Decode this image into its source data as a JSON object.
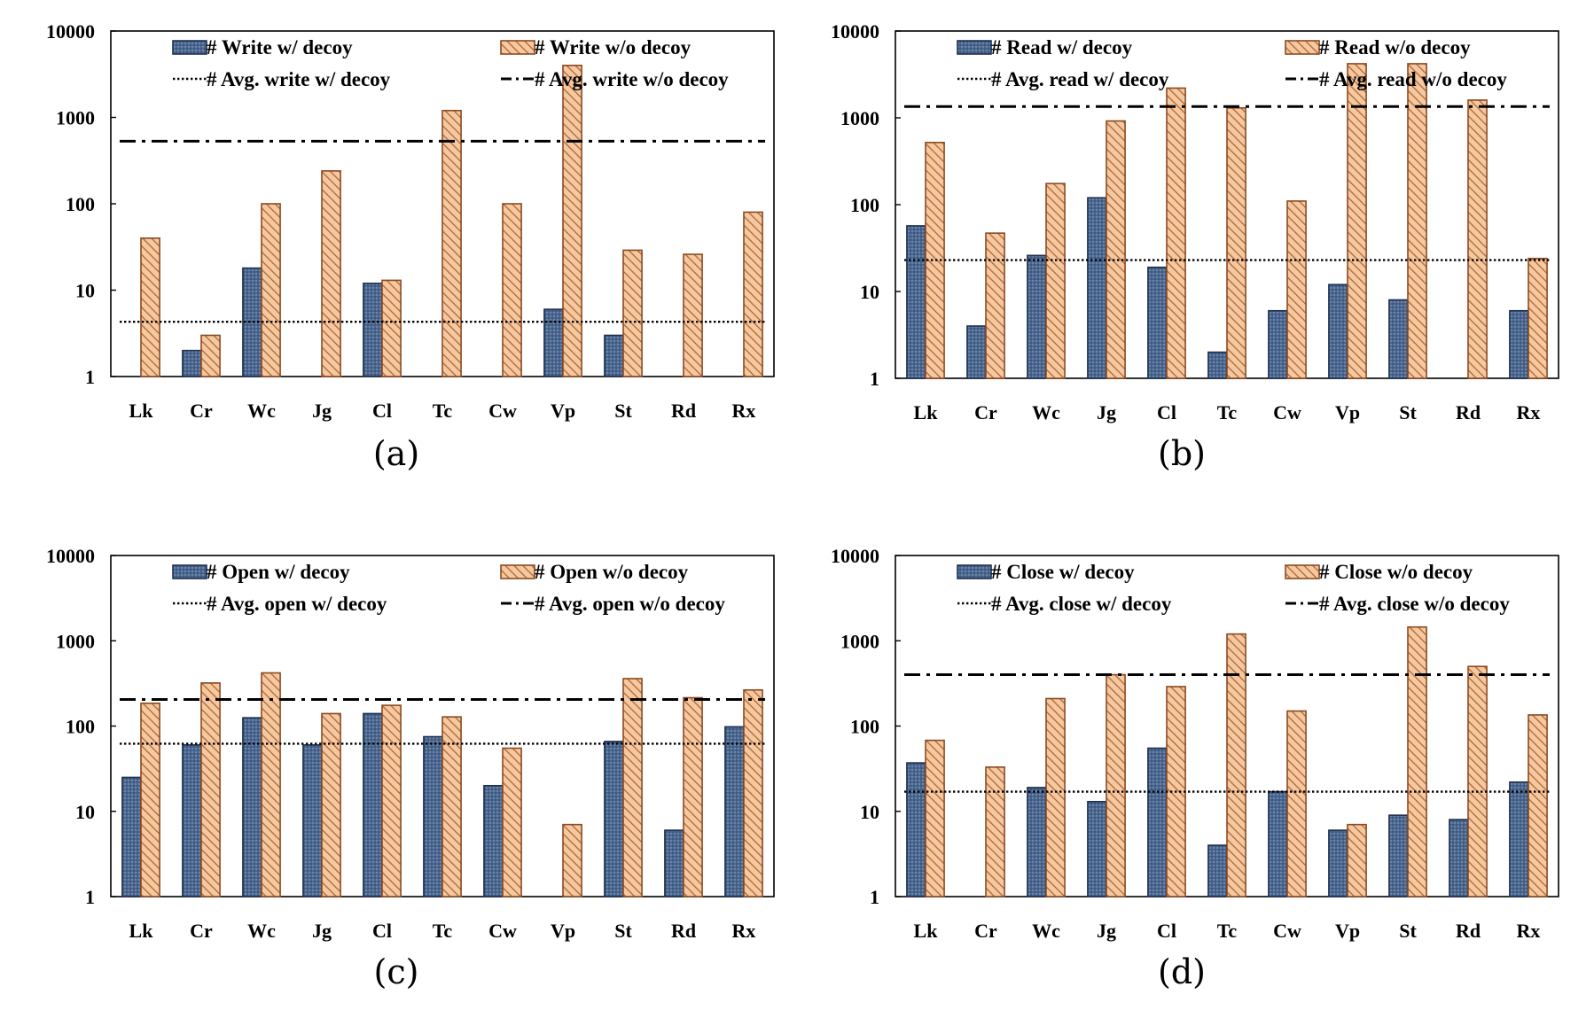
{
  "chart_data": [
    {
      "type": "bar",
      "caption": "(a)",
      "yscale": "log",
      "ylim": [
        1,
        10000
      ],
      "yticks": [
        "1",
        "10",
        "100",
        "1000",
        "10000"
      ],
      "categories": [
        "Lk",
        "Cr",
        "Wc",
        "Jg",
        "Cl",
        "Tc",
        "Cw",
        "Vp",
        "St",
        "Rd",
        "Rx"
      ],
      "series": [
        {
          "name": "# Write w/ decoy",
          "values": [
            null,
            2,
            18,
            null,
            12,
            null,
            null,
            6,
            3,
            null,
            null
          ]
        },
        {
          "name": "# Write w/o decoy",
          "values": [
            40,
            3,
            100,
            240,
            13,
            1200,
            100,
            4000,
            29,
            26,
            80
          ]
        }
      ],
      "lines": [
        {
          "name": "# Avg. write w/ decoy",
          "value": 4.3,
          "style": "dotted"
        },
        {
          "name": "# Avg. write w/o decoy",
          "value": 530,
          "style": "dash-dot"
        }
      ]
    },
    {
      "type": "bar",
      "caption": "(b)",
      "yscale": "log",
      "ylim": [
        1,
        10000
      ],
      "yticks": [
        "1",
        "10",
        "100",
        "1000",
        "10000"
      ],
      "categories": [
        "Lk",
        "Cr",
        "Wc",
        "Jg",
        "Cl",
        "Tc",
        "Cw",
        "Vp",
        "St",
        "Rd",
        "Rx"
      ],
      "series": [
        {
          "name": "# Read w/ decoy",
          "values": [
            57,
            4,
            26,
            120,
            19,
            2,
            6,
            12,
            8,
            null,
            6
          ]
        },
        {
          "name": "# Read w/o decoy",
          "values": [
            520,
            47,
            175,
            920,
            2200,
            1300,
            110,
            4200,
            4200,
            1600,
            24
          ]
        }
      ],
      "lines": [
        {
          "name": "# Avg. read w/ decoy",
          "value": 23,
          "style": "dotted"
        },
        {
          "name": "# Avg. read w/o decoy",
          "value": 1350,
          "style": "dash-dot"
        }
      ]
    },
    {
      "type": "bar",
      "caption": "(c)",
      "yscale": "log",
      "ylim": [
        1,
        10000
      ],
      "yticks": [
        "1",
        "10",
        "100",
        "1000",
        "10000"
      ],
      "categories": [
        "Lk",
        "Cr",
        "Wc",
        "Jg",
        "Cl",
        "Tc",
        "Cw",
        "Vp",
        "St",
        "Rd",
        "Rx"
      ],
      "series": [
        {
          "name": "# Open w/ decoy",
          "values": [
            25,
            60,
            125,
            60,
            140,
            75,
            20,
            null,
            66,
            6,
            98
          ]
        },
        {
          "name": "# Open w/o decoy",
          "values": [
            185,
            320,
            420,
            140,
            175,
            128,
            55,
            7,
            360,
            215,
            265
          ]
        }
      ],
      "lines": [
        {
          "name": "# Avg. open w/ decoy",
          "value": 62,
          "style": "dotted"
        },
        {
          "name": "# Avg. open w/o decoy",
          "value": 205,
          "style": "dash-dot"
        }
      ]
    },
    {
      "type": "bar",
      "caption": "(d)",
      "yscale": "log",
      "ylim": [
        1,
        10000
      ],
      "yticks": [
        "1",
        "10",
        "100",
        "1000",
        "10000"
      ],
      "categories": [
        "Lk",
        "Cr",
        "Wc",
        "Jg",
        "Cl",
        "Tc",
        "Cw",
        "Vp",
        "St",
        "Rd",
        "Rx"
      ],
      "series": [
        {
          "name": "# Close w/ decoy",
          "values": [
            37,
            null,
            19,
            13,
            55,
            4,
            17,
            6,
            9,
            8,
            22
          ]
        },
        {
          "name": "# Close w/o decoy",
          "values": [
            68,
            33,
            210,
            400,
            290,
            1200,
            150,
            7,
            1450,
            500,
            135
          ]
        }
      ],
      "lines": [
        {
          "name": "# Avg. close w/ decoy",
          "value": 17,
          "style": "dotted"
        },
        {
          "name": "# Avg. close w/o decoy",
          "value": 400,
          "style": "dash-dot"
        }
      ]
    }
  ],
  "colors": {
    "with_decoy_fill": "#4a6790",
    "with_decoy_stroke": "#1f3050",
    "without_decoy_fill": "#f4c9a2",
    "without_decoy_stroke": "#8a4a22",
    "without_decoy_hatch": "#b5652e"
  }
}
